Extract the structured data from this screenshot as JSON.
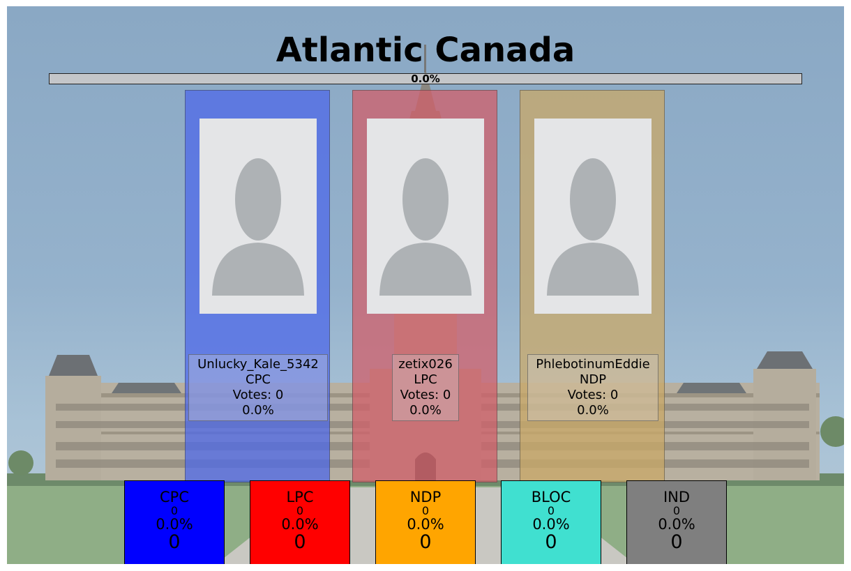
{
  "title": "Atlantic Canada",
  "progress": {
    "label": "0.0%",
    "value": 0.0,
    "fill_color": "#2a9d3a"
  },
  "candidates": [
    {
      "name": "Unlucky_Kale_5342",
      "party": "CPC",
      "votes": "Votes: 0",
      "percent": "0.0%",
      "color": "#4e68e8"
    },
    {
      "name": "zetix026",
      "party": "LPC",
      "votes": "Votes: 0",
      "percent": "0.0%",
      "color": "#d05f69"
    },
    {
      "name": "PhlebotinumEddie",
      "party": "NDP",
      "votes": "Votes: 0",
      "percent": "0.0%",
      "color": "#c9a867"
    }
  ],
  "tallies": [
    {
      "abbr": "CPC",
      "seats": "0",
      "percent": "0.0%",
      "total": "0",
      "color": "#0000ff"
    },
    {
      "abbr": "LPC",
      "seats": "0",
      "percent": "0.0%",
      "total": "0",
      "color": "#ff0000"
    },
    {
      "abbr": "NDP",
      "seats": "0",
      "percent": "0.0%",
      "total": "0",
      "color": "#ffa500"
    },
    {
      "abbr": "BLOC",
      "seats": "0",
      "percent": "0.0%",
      "total": "0",
      "color": "#40e0d0"
    },
    {
      "abbr": "IND",
      "seats": "0",
      "percent": "0.0%",
      "total": "0",
      "color": "#7f7f7f"
    }
  ],
  "icons": {
    "avatar": "avatar-placeholder-icon",
    "background": "parliament-building-image"
  }
}
